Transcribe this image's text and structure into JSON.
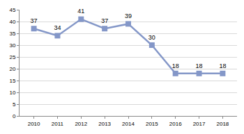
{
  "chart_data": {
    "type": "line",
    "categories": [
      "2010",
      "2011",
      "2012",
      "2013",
      "2014",
      "2015",
      "2016",
      "2017",
      "2018"
    ],
    "values": [
      37,
      34,
      41,
      37,
      39,
      30,
      18,
      18,
      18
    ],
    "color": "#8497c8",
    "marker": "square",
    "line_style": "solid",
    "ylim": [
      0,
      45
    ],
    "yticks": [
      0,
      5,
      10,
      15,
      20,
      25,
      30,
      35,
      40,
      45
    ],
    "grid": true,
    "data_labels": true
  }
}
